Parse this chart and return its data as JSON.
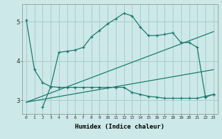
{
  "xlabel": "Humidex (Indice chaleur)",
  "background_color": "#cce8e8",
  "grid_color": "#aacccc",
  "line_color": "#1a7a6e",
  "x_ticks": [
    0,
    1,
    2,
    3,
    4,
    5,
    6,
    7,
    8,
    9,
    10,
    11,
    12,
    13,
    14,
    15,
    16,
    17,
    18,
    19,
    20,
    21,
    22,
    23
  ],
  "y_ticks": [
    3,
    4,
    5
  ],
  "ylim": [
    2.65,
    5.45
  ],
  "xlim": [
    -0.5,
    23.5
  ],
  "line1_x": [
    0,
    1,
    2,
    3,
    4,
    5,
    6,
    7,
    8,
    9,
    10,
    11,
    12,
    13,
    14,
    15,
    16,
    17,
    18,
    19,
    20,
    21,
    22,
    23
  ],
  "line1_y": [
    5.05,
    3.78,
    3.45,
    3.35,
    4.22,
    4.25,
    4.28,
    4.35,
    4.62,
    4.78,
    4.95,
    5.08,
    5.22,
    5.15,
    4.87,
    4.65,
    4.65,
    4.68,
    4.72,
    4.47,
    4.47,
    4.35,
    3.08,
    3.15
  ],
  "line2_x": [
    2,
    3,
    4,
    5,
    6,
    7,
    8,
    9,
    10,
    11,
    12,
    13,
    14,
    15,
    16,
    17,
    18,
    19,
    20,
    21,
    22,
    23
  ],
  "line2_y": [
    2.82,
    3.35,
    3.33,
    3.33,
    3.33,
    3.33,
    3.33,
    3.33,
    3.33,
    3.33,
    3.33,
    3.2,
    3.15,
    3.1,
    3.08,
    3.05,
    3.05,
    3.05,
    3.05,
    3.05,
    3.1,
    3.15
  ],
  "line3_x": [
    0,
    23
  ],
  "line3_y": [
    2.95,
    4.75
  ],
  "line4_x": [
    0,
    23
  ],
  "line4_y": [
    2.95,
    3.78
  ]
}
